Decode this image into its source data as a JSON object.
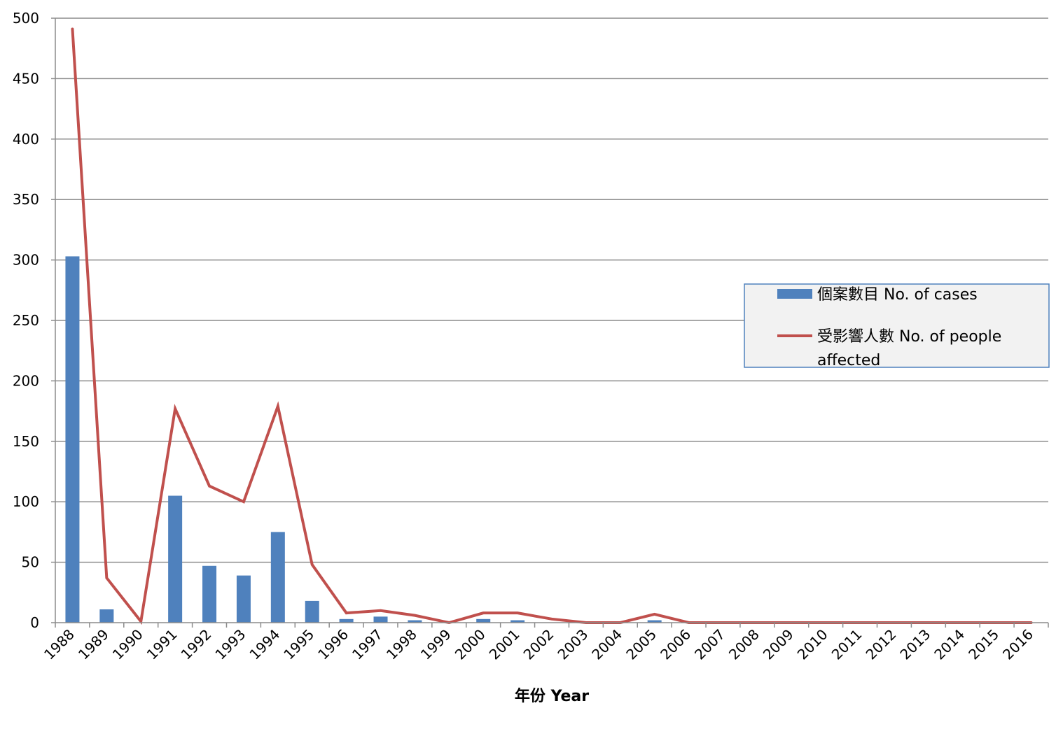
{
  "chart_data": {
    "type": "bar",
    "categories": [
      "1988",
      "1989",
      "1990",
      "1991",
      "1992",
      "1993",
      "1994",
      "1995",
      "1996",
      "1997",
      "1998",
      "1999",
      "2000",
      "2001",
      "2002",
      "2003",
      "2004",
      "2005",
      "2006",
      "2007",
      "2008",
      "2009",
      "2010",
      "2011",
      "2012",
      "2013",
      "2014",
      "2015",
      "2016"
    ],
    "series": [
      {
        "name": "個案數目 No. of cases",
        "type": "bar",
        "color": "#4f81bd",
        "values": [
          303,
          11,
          0,
          105,
          47,
          39,
          75,
          18,
          3,
          5,
          2,
          0,
          3,
          2,
          0,
          0,
          0,
          2,
          0,
          0,
          0,
          0,
          0,
          0,
          0,
          0,
          0,
          0,
          0
        ]
      },
      {
        "name": "受影響人數 No. of people affected",
        "type": "line",
        "color": "#c0504d",
        "values": [
          491,
          37,
          1,
          177,
          113,
          100,
          179,
          48,
          8,
          10,
          6,
          0,
          8,
          8,
          3,
          0,
          0,
          7,
          0,
          0,
          0,
          0,
          0,
          0,
          0,
          0,
          0,
          0,
          0
        ]
      }
    ],
    "xlabel": "年份 Year",
    "ylabel": "",
    "ylim": [
      0,
      500
    ],
    "yticks": [
      0,
      50,
      100,
      150,
      200,
      250,
      300,
      350,
      400,
      450,
      500
    ],
    "grid": true,
    "legend_position": "right",
    "legend": [
      {
        "label_line1": "個案數目 No. of cases",
        "label_line2": ""
      },
      {
        "label_line1": "受影響人數 No. of people",
        "label_line2": "affected"
      }
    ]
  }
}
